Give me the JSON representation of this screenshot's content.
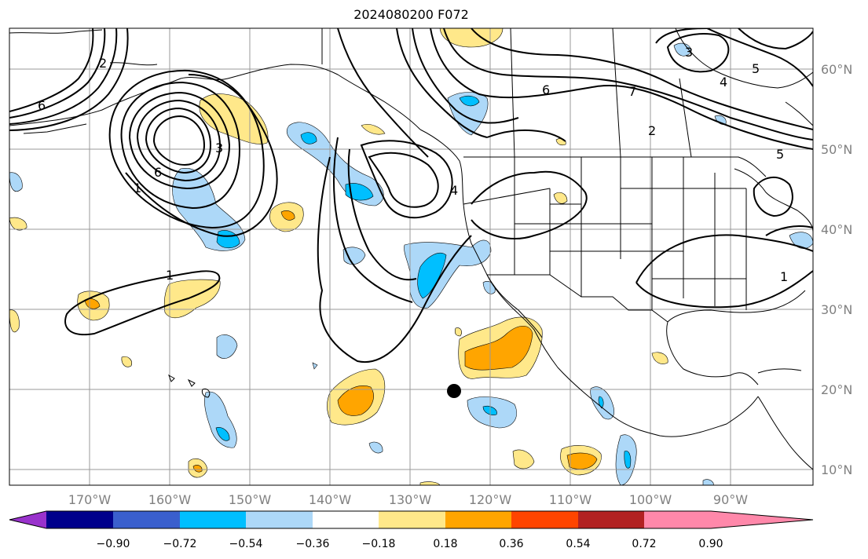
{
  "title": "2024080200 F072",
  "longitude_labels": [
    "170°W",
    "160°W",
    "150°W",
    "140°W",
    "130°W",
    "120°W",
    "110°W",
    "100°W",
    "90°W"
  ],
  "latitude_labels": [
    "60°N",
    "50°N",
    "40°N",
    "30°N",
    "20°N",
    "10°N"
  ],
  "contour_labels": [
    "1",
    "1",
    "2",
    "3",
    "4",
    "4",
    "5",
    "5",
    "6",
    "6",
    "6",
    "7",
    "3",
    "2",
    "1"
  ],
  "colorbar": {
    "ticks": [
      "−0.90",
      "−0.72",
      "−0.54",
      "−0.36",
      "−0.18",
      "0.18",
      "0.36",
      "0.54",
      "0.72",
      "0.90"
    ],
    "colors": [
      "#9932cc",
      "#00008b",
      "#3a5fcd",
      "#00bfff",
      "#add8f8",
      "#ffffff",
      "#ffe88a",
      "#ffa500",
      "#ff4500",
      "#b22222",
      "#ff88aa"
    ]
  },
  "marker": "black dot near 20°N 125°W"
}
